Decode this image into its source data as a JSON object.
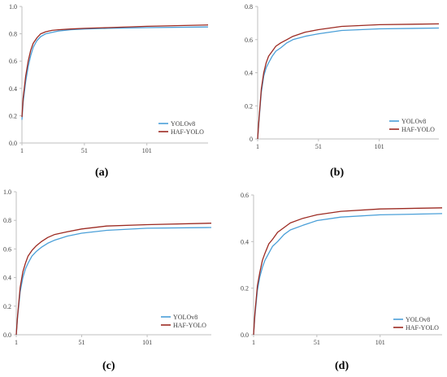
{
  "colors": {
    "yolov8": "#4a9fd8",
    "haf_yolo": "#9c2a22",
    "axis": "#bfbfbf",
    "tick_text": "#404040"
  },
  "chart_data": [
    {
      "type": "line",
      "panel_label": "(a)",
      "ylim": [
        0,
        1.0
      ],
      "yticks": [
        "0.0",
        "0.2",
        "0.4",
        "0.6",
        "0.8",
        "1.0"
      ],
      "xlim": [
        1,
        150
      ],
      "xticks": [
        "1",
        "51",
        "101"
      ],
      "legend_position": "bottom-right",
      "series": [
        {
          "name": "YOLOv8",
          "color": "#4a9fd8",
          "x": [
            1,
            2,
            4,
            6,
            8,
            10,
            13,
            16,
            20,
            25,
            30,
            40,
            51,
            70,
            101,
            150
          ],
          "y": [
            0.17,
            0.3,
            0.45,
            0.56,
            0.64,
            0.7,
            0.75,
            0.78,
            0.8,
            0.81,
            0.82,
            0.83,
            0.835,
            0.84,
            0.845,
            0.85
          ]
        },
        {
          "name": "HAF-YOLO",
          "color": "#9c2a22",
          "x": [
            1,
            2,
            4,
            6,
            8,
            10,
            13,
            16,
            20,
            25,
            30,
            40,
            51,
            70,
            101,
            150
          ],
          "y": [
            0.19,
            0.33,
            0.49,
            0.6,
            0.68,
            0.73,
            0.77,
            0.8,
            0.815,
            0.825,
            0.83,
            0.835,
            0.84,
            0.845,
            0.855,
            0.865
          ]
        }
      ]
    },
    {
      "type": "line",
      "panel_label": "(b)",
      "ylim": [
        0,
        0.8
      ],
      "yticks": [
        "0",
        "0.2",
        "0.4",
        "0.6",
        "0.8"
      ],
      "xlim": [
        1,
        150
      ],
      "xticks": [
        "1",
        "51",
        "101"
      ],
      "legend_position": "bottom-right",
      "series": [
        {
          "name": "YOLOv8",
          "color": "#4a9fd8",
          "x": [
            1,
            2,
            4,
            6,
            8,
            10,
            13,
            16,
            20,
            25,
            30,
            40,
            51,
            70,
            101,
            150
          ],
          "y": [
            0.0,
            0.1,
            0.28,
            0.38,
            0.43,
            0.46,
            0.5,
            0.53,
            0.55,
            0.58,
            0.6,
            0.62,
            0.635,
            0.655,
            0.665,
            0.67
          ]
        },
        {
          "name": "HAF-YOLO",
          "color": "#9c2a22",
          "x": [
            1,
            2,
            4,
            6,
            8,
            10,
            13,
            16,
            20,
            25,
            30,
            40,
            51,
            70,
            101,
            150
          ],
          "y": [
            0.0,
            0.11,
            0.3,
            0.4,
            0.46,
            0.5,
            0.53,
            0.56,
            0.58,
            0.6,
            0.62,
            0.645,
            0.66,
            0.68,
            0.69,
            0.695
          ]
        }
      ]
    },
    {
      "type": "line",
      "panel_label": "(c)",
      "ylim": [
        0,
        1.0
      ],
      "yticks": [
        "0.0",
        "0.2",
        "0.4",
        "0.6",
        "0.8",
        "1.0"
      ],
      "xlim": [
        1,
        150
      ],
      "xticks": [
        "1",
        "51",
        "101"
      ],
      "legend_position": "bottom-right",
      "series": [
        {
          "name": "YOLOv8",
          "color": "#4a9fd8",
          "x": [
            1,
            2,
            4,
            6,
            8,
            10,
            13,
            16,
            20,
            25,
            30,
            40,
            51,
            70,
            101,
            150
          ],
          "y": [
            0.0,
            0.12,
            0.3,
            0.4,
            0.46,
            0.5,
            0.55,
            0.58,
            0.61,
            0.64,
            0.66,
            0.69,
            0.71,
            0.73,
            0.745,
            0.75
          ]
        },
        {
          "name": "HAF-YOLO",
          "color": "#9c2a22",
          "x": [
            1,
            2,
            4,
            6,
            8,
            10,
            13,
            16,
            20,
            25,
            30,
            40,
            51,
            70,
            101,
            150
          ],
          "y": [
            0.0,
            0.13,
            0.33,
            0.44,
            0.5,
            0.55,
            0.59,
            0.62,
            0.65,
            0.68,
            0.7,
            0.72,
            0.74,
            0.76,
            0.77,
            0.78
          ]
        }
      ]
    },
    {
      "type": "line",
      "panel_label": "(d)",
      "ylim": [
        0,
        0.6
      ],
      "yticks": [
        "0.0",
        "0.2",
        "0.4",
        "0.6"
      ],
      "xlim": [
        1,
        150
      ],
      "xticks": [
        "1",
        "51",
        "101"
      ],
      "legend_position": "bottom-right",
      "series": [
        {
          "name": "YOLOv8",
          "color": "#4a9fd8",
          "x": [
            1,
            2,
            4,
            6,
            8,
            10,
            13,
            16,
            20,
            25,
            30,
            40,
            51,
            70,
            101,
            150
          ],
          "y": [
            0.0,
            0.08,
            0.19,
            0.25,
            0.29,
            0.32,
            0.35,
            0.38,
            0.4,
            0.43,
            0.45,
            0.47,
            0.49,
            0.505,
            0.515,
            0.52
          ]
        },
        {
          "name": "HAF-YOLO",
          "color": "#9c2a22",
          "x": [
            1,
            2,
            4,
            6,
            8,
            10,
            13,
            16,
            20,
            25,
            30,
            40,
            51,
            70,
            101,
            150
          ],
          "y": [
            0.0,
            0.09,
            0.21,
            0.27,
            0.32,
            0.35,
            0.39,
            0.41,
            0.44,
            0.46,
            0.48,
            0.5,
            0.515,
            0.53,
            0.54,
            0.545
          ]
        }
      ]
    }
  ]
}
